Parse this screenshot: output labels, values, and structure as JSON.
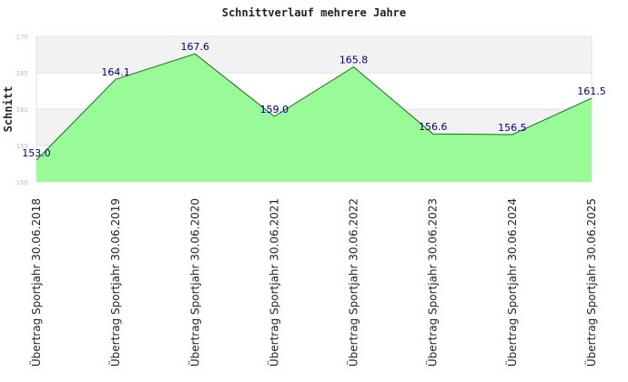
{
  "chart_data": {
    "type": "area",
    "title": "Schnittverlauf mehrere Jahre",
    "xlabel": "",
    "ylabel": "Schnitt",
    "ylim": [
      150,
      170
    ],
    "yticks": [
      "150",
      "155",
      "160",
      "165",
      "170"
    ],
    "grid": true,
    "legend": "none",
    "categories": [
      "Übertrag Sportjahr 30.06.2018",
      "Übertrag Sportjahr 30.06.2019",
      "Übertrag Sportjahr 30.06.2020",
      "Übertrag Sportjahr 30.06.2021",
      "Übertrag Sportjahr 30.06.2022",
      "Übertrag Sportjahr 30.06.2023",
      "Übertrag Sportjahr 30.06.2024",
      "Übertrag Sportjahr 30.06.2025"
    ],
    "values": [
      153.0,
      164.1,
      167.6,
      159.0,
      165.8,
      156.6,
      156.5,
      161.5
    ],
    "data_labels": [
      "153.0",
      "164.1",
      "167.6",
      "159.0",
      "165.8",
      "156.6",
      "156.5",
      "161.5"
    ],
    "colors": {
      "fill": "#98fb98",
      "line": "#008000",
      "band": "#f2f2f2",
      "grid": "#e2e2e2",
      "data_label": "#000080"
    }
  }
}
